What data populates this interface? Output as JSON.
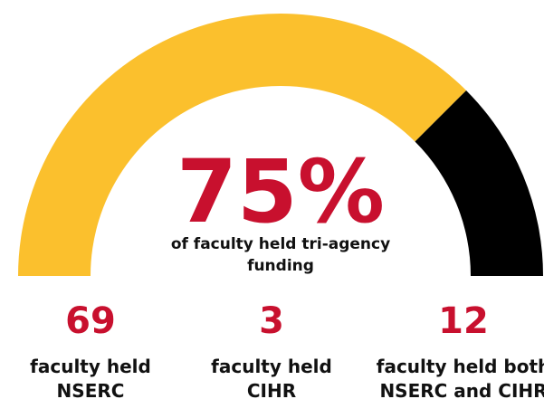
{
  "chart_data": {
    "type": "gauge",
    "value": 75,
    "value_label": "75%",
    "ylim": [
      0,
      100
    ],
    "color": "#fbc02d",
    "remainder_color": "#000000",
    "label_color": "#c8102e",
    "subtitle": [
      "of faculty held tri-agency",
      "funding"
    ],
    "stats": [
      {
        "value": 69,
        "lines": [
          "faculty held",
          "NSERC"
        ]
      },
      {
        "value": 3,
        "lines": [
          "faculty held",
          "CIHR"
        ]
      },
      {
        "value": 12,
        "lines": [
          "faculty held both",
          "NSERC and CIHR"
        ]
      }
    ]
  }
}
